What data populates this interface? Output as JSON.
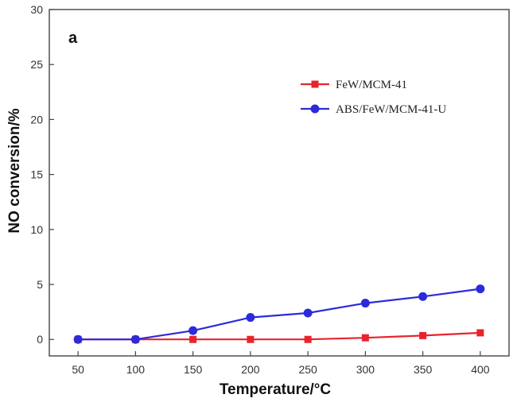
{
  "chart_data": {
    "type": "line",
    "panel_label": "a",
    "xlabel": "Temperature/°C",
    "ylabel": "NO conversion/%",
    "x": [
      50,
      100,
      150,
      200,
      250,
      300,
      350,
      400
    ],
    "xticks": [
      50,
      100,
      150,
      200,
      250,
      300,
      350,
      400
    ],
    "xlim": [
      25,
      425
    ],
    "ylim": [
      -1.5,
      30
    ],
    "yticks": [
      0,
      5,
      10,
      15,
      20,
      25,
      30
    ],
    "grid": false,
    "legend_position": "top-right",
    "series": [
      {
        "name": "FeW/MCM-41",
        "color": "#e8232d",
        "marker": "square",
        "values": [
          0,
          0,
          0,
          0,
          0,
          0.15,
          0.35,
          0.6
        ]
      },
      {
        "name": "ABS/FeW/MCM-41-U",
        "color": "#2b2bdc",
        "marker": "circle",
        "values": [
          0,
          0,
          0.8,
          2.0,
          2.4,
          3.3,
          3.9,
          4.6
        ]
      }
    ]
  }
}
